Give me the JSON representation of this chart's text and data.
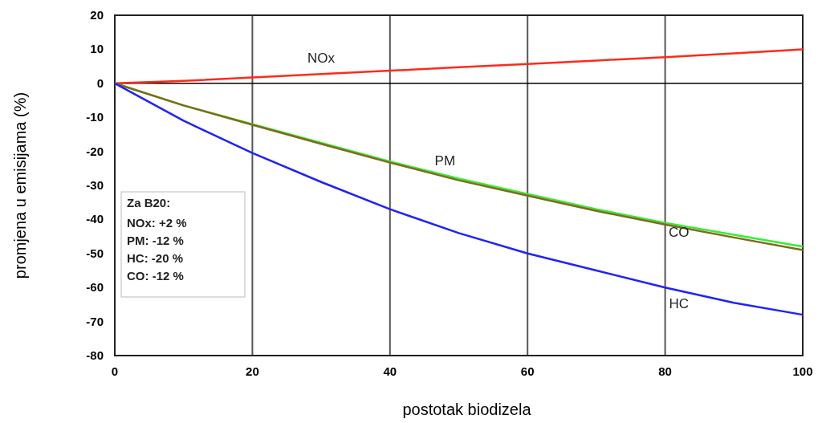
{
  "chart_data": {
    "type": "line",
    "xlabel": "postotak biodizela",
    "ylabel": "promjena u emisijama (%)",
    "x": [
      0,
      10,
      20,
      30,
      40,
      50,
      60,
      70,
      80,
      90,
      100
    ],
    "series": [
      {
        "name": "NOx",
        "color": "#ff2a1a",
        "values": [
          0,
          0.7,
          1.7,
          2.7,
          3.7,
          4.7,
          5.7,
          6.7,
          7.7,
          8.8,
          10
        ]
      },
      {
        "name": "PM",
        "color": "#33ee33",
        "values": [
          0,
          -6.5,
          -12,
          -17.5,
          -23,
          -28,
          -32.5,
          -37,
          -41,
          -44.5,
          -48
        ]
      },
      {
        "name": "CO",
        "color": "#806a1c",
        "values": [
          0,
          -6.5,
          -12.2,
          -17.8,
          -23.3,
          -28.5,
          -33,
          -37.5,
          -41.5,
          -45.3,
          -49
        ]
      },
      {
        "name": "HC",
        "color": "#2020ff",
        "values": [
          0,
          -11,
          -20.5,
          -29,
          -37,
          -44,
          -50,
          -55,
          -60,
          -64.5,
          -68
        ]
      }
    ],
    "xlim": [
      0,
      100
    ],
    "xticks": [
      0,
      20,
      40,
      60,
      80,
      100
    ],
    "ylim": [
      -80,
      20
    ],
    "yticks": [
      -80,
      -70,
      -60,
      -50,
      -40,
      -30,
      -20,
      -10,
      0,
      10,
      20
    ],
    "grid": "x",
    "ref_lines": [
      {
        "axis": "y",
        "value": 0,
        "color": "#000000"
      }
    ],
    "annotations": [
      "Za B20:",
      "NOx: +2 %",
      "PM: -12 %",
      "HC: -20 %",
      "CO: -12 %"
    ]
  }
}
